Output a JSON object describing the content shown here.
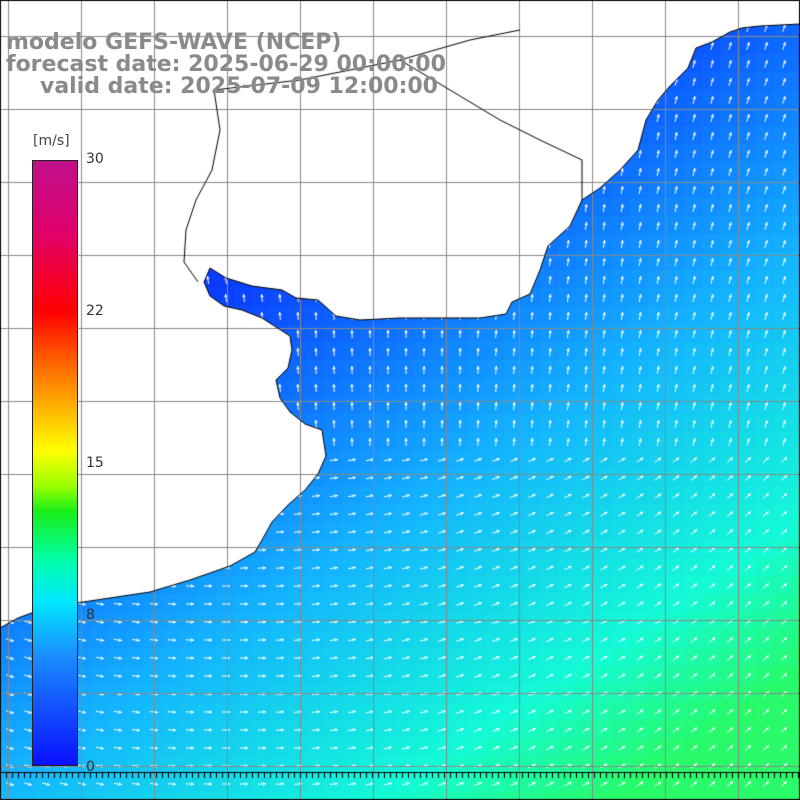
{
  "title": {
    "model": "modelo GEFS-WAVE (NCEP)",
    "forecast": "forecast date: 2025-06-29 00:00:00",
    "valid": "valid date: 2025-07-09 12:00:00"
  },
  "colorbar": {
    "units": "[m/s]",
    "ticks": [
      "30",
      "22",
      "15",
      "8",
      "0"
    ],
    "tick_values": [
      30,
      22,
      15,
      8,
      0
    ],
    "range": [
      0,
      30
    ],
    "colors": [
      "#0a10ff",
      "#1a8cff",
      "#00e8ff",
      "#19ee19",
      "#ffff00",
      "#ff5400",
      "#ff0000",
      "#c0108c"
    ]
  },
  "map": {
    "land_color": "#ffffff",
    "grid_color": "#888888",
    "coast_color": "#000000",
    "arrow_color": "#ffffff",
    "grid_on": true
  }
}
